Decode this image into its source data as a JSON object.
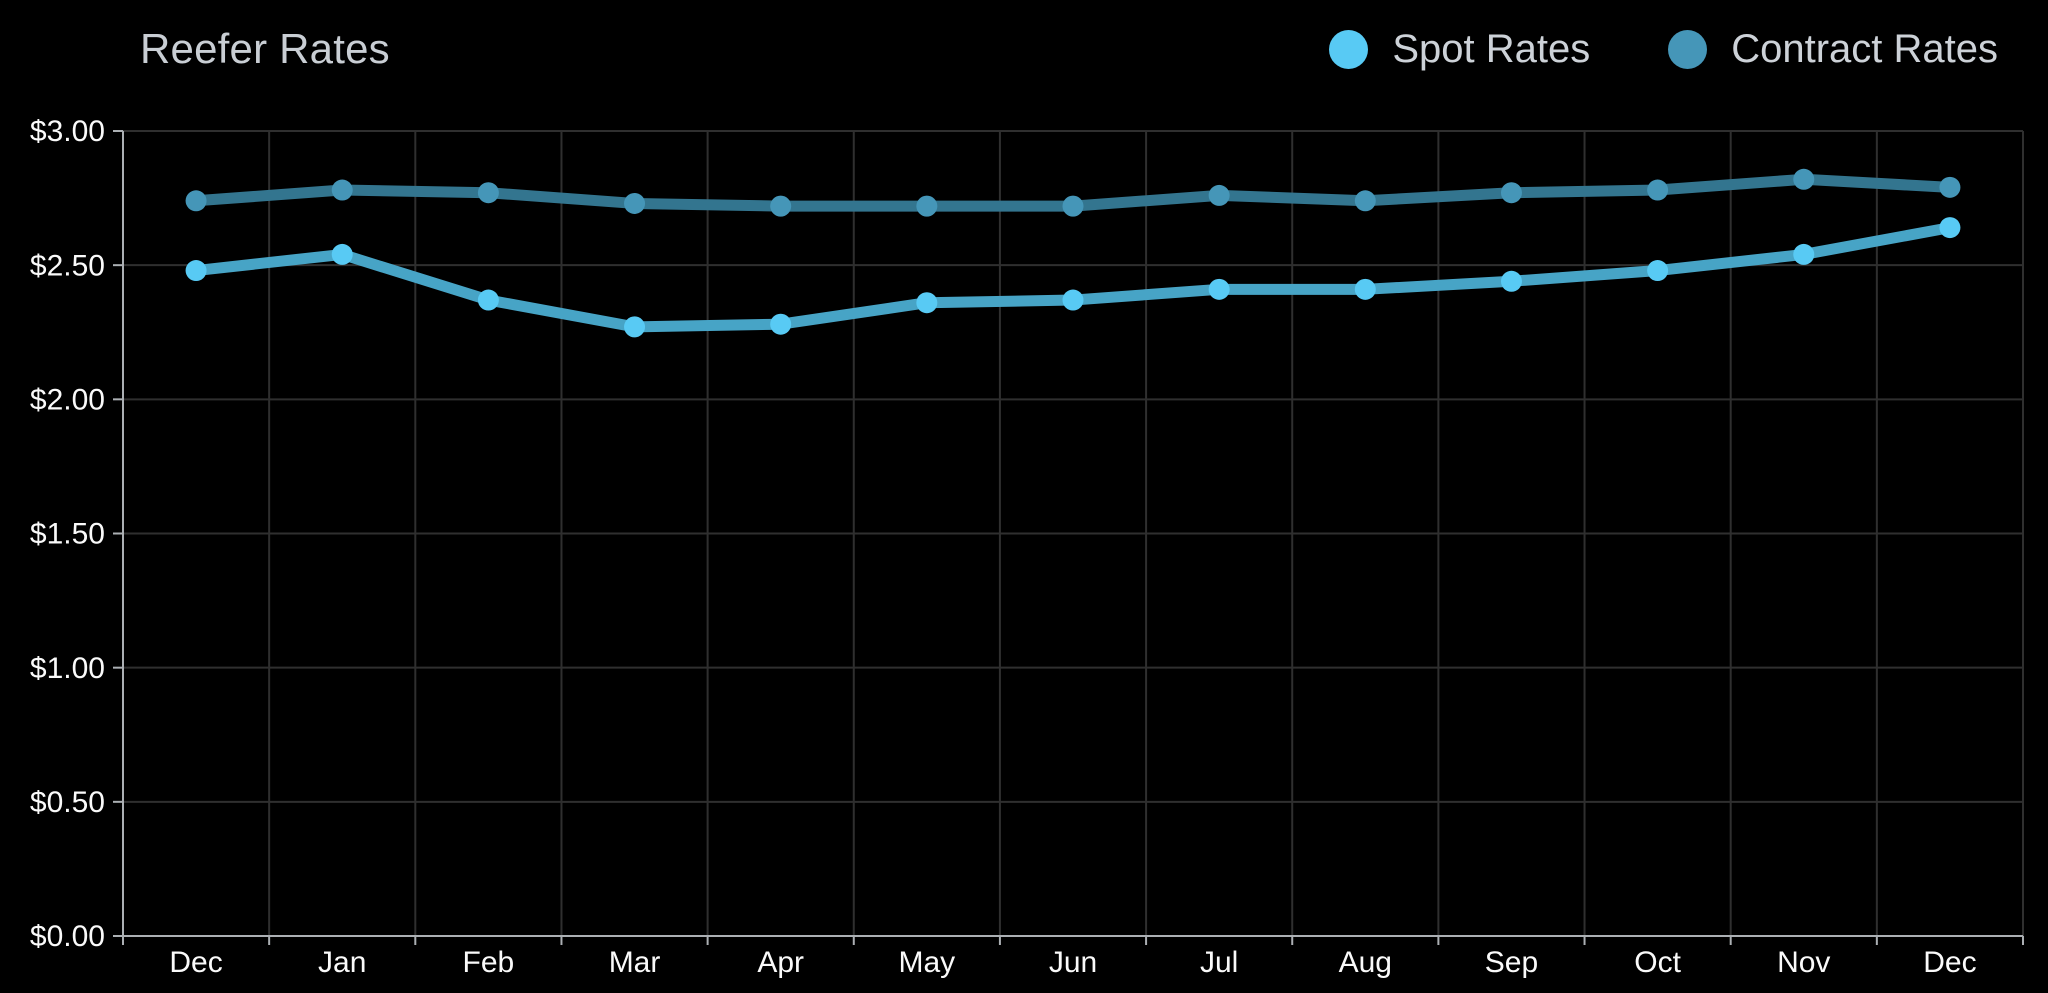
{
  "header": {
    "title": "Reefer Rates"
  },
  "chart_data": {
    "type": "line",
    "title": "Reefer Rates",
    "categories": [
      "Dec",
      "Jan",
      "Feb",
      "Mar",
      "Apr",
      "May",
      "Jun",
      "Jul",
      "Aug",
      "Sep",
      "Oct",
      "Nov",
      "Dec"
    ],
    "series": [
      {
        "name": "Spot Rates",
        "values": [
          2.48,
          2.54,
          2.37,
          2.27,
          2.28,
          2.36,
          2.37,
          2.41,
          2.41,
          2.44,
          2.48,
          2.54,
          2.64
        ],
        "line_color": "#47A4C6",
        "marker_color": "#58CAF4"
      },
      {
        "name": "Contract Rates",
        "values": [
          2.74,
          2.78,
          2.77,
          2.73,
          2.72,
          2.72,
          2.72,
          2.76,
          2.74,
          2.77,
          2.78,
          2.82,
          2.79
        ],
        "line_color": "#33758F",
        "marker_color": "#4596B8"
      }
    ],
    "xlabel": "",
    "ylabel": "",
    "ylim": [
      0,
      3
    ],
    "y_ticks": [
      {
        "value": 3.0,
        "label": "$3.00"
      },
      {
        "value": 2.5,
        "label": "$2.50"
      },
      {
        "value": 2.0,
        "label": "$2.00"
      },
      {
        "value": 1.5,
        "label": "$1.50"
      },
      {
        "value": 1.0,
        "label": "$1.00"
      },
      {
        "value": 0.5,
        "label": "$0.50"
      },
      {
        "value": 0.0,
        "label": "$0.00"
      }
    ],
    "grid": true,
    "legend_position": "top-right",
    "colors": {
      "background": "#000000",
      "grid_line": "#2F2F2F",
      "axis_line": "#ABAFB3",
      "axis_text": "#FAFAFA",
      "title_text": "#C9CED4"
    }
  }
}
